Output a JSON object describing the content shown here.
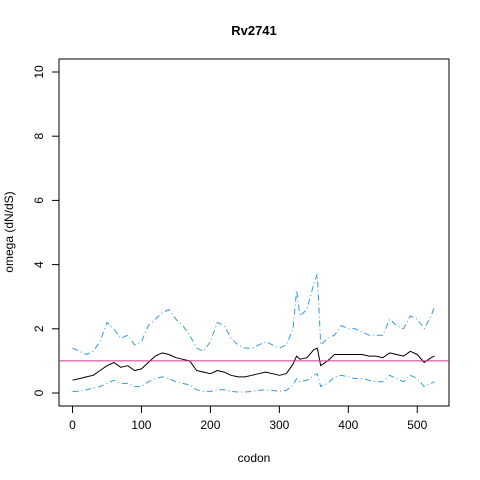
{
  "chart_data": {
    "type": "line",
    "title": "Rv2741",
    "xlabel": "codon",
    "ylabel": "omega (dN/dS)",
    "xlim": [
      0,
      525
    ],
    "ylim": [
      0,
      10
    ],
    "x_ticks": [
      0,
      100,
      200,
      300,
      400,
      500
    ],
    "y_ticks": [
      0,
      2,
      4,
      6,
      8,
      10
    ],
    "reference_line": {
      "y": 1,
      "color": "#cc3399"
    },
    "grid": false,
    "legend": "none",
    "series": [
      {
        "role": "upper-ci",
        "color": "#3399dd",
        "style": "dashed",
        "x": [
          0,
          10,
          20,
          30,
          40,
          50,
          60,
          70,
          80,
          90,
          100,
          110,
          120,
          130,
          140,
          150,
          160,
          170,
          180,
          190,
          200,
          210,
          220,
          230,
          240,
          250,
          260,
          270,
          280,
          290,
          300,
          310,
          320,
          325,
          330,
          340,
          350,
          355,
          360,
          370,
          380,
          390,
          400,
          410,
          420,
          430,
          440,
          450,
          460,
          470,
          480,
          490,
          500,
          510,
          520,
          525
        ],
        "values": [
          1.4,
          1.3,
          1.2,
          1.3,
          1.6,
          2.2,
          2.0,
          1.7,
          1.8,
          1.5,
          1.6,
          2.1,
          2.3,
          2.5,
          2.6,
          2.3,
          2.1,
          1.8,
          1.4,
          1.3,
          1.6,
          2.2,
          2.1,
          1.7,
          1.5,
          1.4,
          1.4,
          1.5,
          1.6,
          1.5,
          1.4,
          1.5,
          2.0,
          3.2,
          2.4,
          2.6,
          3.4,
          3.7,
          1.5,
          1.7,
          1.8,
          2.1,
          2.0,
          2.0,
          1.9,
          1.8,
          1.8,
          1.8,
          2.3,
          2.1,
          2.0,
          2.4,
          2.3,
          2.0,
          2.4,
          2.7
        ]
      },
      {
        "role": "omega",
        "color": "#000000",
        "style": "solid",
        "x": [
          0,
          10,
          20,
          30,
          40,
          50,
          60,
          70,
          80,
          90,
          100,
          110,
          120,
          130,
          140,
          150,
          160,
          170,
          180,
          190,
          200,
          210,
          220,
          230,
          240,
          250,
          260,
          270,
          280,
          290,
          300,
          310,
          320,
          325,
          330,
          340,
          350,
          355,
          360,
          370,
          380,
          390,
          400,
          410,
          420,
          430,
          440,
          450,
          460,
          470,
          480,
          490,
          500,
          510,
          520,
          525
        ],
        "values": [
          0.4,
          0.45,
          0.5,
          0.55,
          0.7,
          0.85,
          0.95,
          0.8,
          0.85,
          0.7,
          0.75,
          0.95,
          1.15,
          1.25,
          1.2,
          1.1,
          1.05,
          1.0,
          0.7,
          0.65,
          0.6,
          0.7,
          0.65,
          0.55,
          0.5,
          0.5,
          0.55,
          0.6,
          0.65,
          0.6,
          0.55,
          0.6,
          0.9,
          1.15,
          1.05,
          1.1,
          1.35,
          1.4,
          0.85,
          1.0,
          1.2,
          1.2,
          1.2,
          1.2,
          1.2,
          1.15,
          1.15,
          1.1,
          1.25,
          1.2,
          1.15,
          1.3,
          1.2,
          0.95,
          1.1,
          1.15
        ]
      },
      {
        "role": "lower-ci",
        "color": "#3399dd",
        "style": "dashed",
        "x": [
          0,
          10,
          20,
          30,
          40,
          50,
          60,
          70,
          80,
          90,
          100,
          110,
          120,
          130,
          140,
          150,
          160,
          170,
          180,
          190,
          200,
          210,
          220,
          230,
          240,
          250,
          260,
          270,
          280,
          290,
          300,
          310,
          320,
          325,
          330,
          340,
          350,
          355,
          360,
          370,
          380,
          390,
          400,
          410,
          420,
          430,
          440,
          450,
          460,
          470,
          480,
          490,
          500,
          510,
          520,
          525
        ],
        "values": [
          0.05,
          0.05,
          0.1,
          0.15,
          0.2,
          0.3,
          0.4,
          0.3,
          0.3,
          0.2,
          0.2,
          0.35,
          0.45,
          0.5,
          0.45,
          0.35,
          0.3,
          0.25,
          0.1,
          0.05,
          0.05,
          0.1,
          0.1,
          0.05,
          0.03,
          0.03,
          0.05,
          0.08,
          0.1,
          0.08,
          0.05,
          0.08,
          0.25,
          0.45,
          0.35,
          0.4,
          0.55,
          0.6,
          0.2,
          0.3,
          0.5,
          0.55,
          0.5,
          0.45,
          0.45,
          0.4,
          0.35,
          0.35,
          0.55,
          0.45,
          0.35,
          0.55,
          0.45,
          0.2,
          0.3,
          0.35
        ]
      }
    ]
  }
}
